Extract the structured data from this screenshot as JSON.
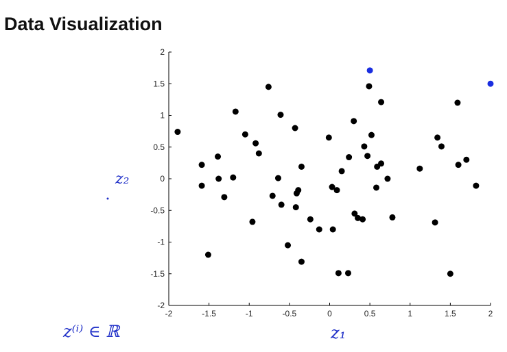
{
  "chart_data": {
    "type": "scatter",
    "title": "Data Visualization",
    "annotations": [
      "z₂",
      "z₁",
      "z⁽ⁱ⁾ ∈ ℝ"
    ],
    "xlim": [
      -2,
      2
    ],
    "ylim": [
      -2,
      2
    ],
    "xticks": [
      -2,
      -1.5,
      -1,
      -0.5,
      0,
      0.5,
      1,
      1.5,
      2
    ],
    "yticks": [
      -2,
      -1.5,
      -1,
      -0.5,
      0,
      0.5,
      1,
      1.5,
      2
    ],
    "series": [
      {
        "color": "#000000",
        "x": [
          -1.89,
          -1.59,
          -1.39,
          -1.59,
          -1.38,
          -1.31,
          -1.51,
          -1.17,
          -1.2,
          -1.05,
          -0.92,
          -0.88,
          -0.96,
          -0.76,
          -0.71,
          -0.61,
          -0.64,
          -0.6,
          -0.52,
          -0.43,
          -0.41,
          -0.42,
          -0.39,
          -0.35,
          -0.35,
          -0.24,
          -0.13,
          -0.01,
          0.03,
          0.04,
          0.09,
          0.15,
          0.11,
          0.23,
          0.24,
          0.3,
          0.31,
          0.35,
          0.41,
          0.43,
          0.47,
          0.49,
          0.52,
          0.59,
          0.64,
          0.58,
          0.64,
          0.72,
          0.78,
          1.12,
          1.34,
          1.31,
          1.39,
          1.5,
          1.59,
          1.6,
          1.7,
          1.82
        ],
        "values": [
          0.74,
          0.22,
          0.35,
          -0.11,
          0.0,
          -0.29,
          -1.2,
          1.06,
          0.02,
          0.7,
          0.56,
          0.4,
          -0.68,
          1.45,
          -0.27,
          1.01,
          0.01,
          -0.41,
          -1.05,
          0.8,
          -0.23,
          -0.45,
          -0.18,
          0.19,
          -1.31,
          -0.64,
          -0.8,
          0.65,
          -0.13,
          -0.8,
          -0.18,
          0.12,
          -1.49,
          -1.49,
          0.34,
          0.91,
          -0.55,
          -0.62,
          -0.64,
          0.51,
          0.36,
          1.46,
          0.69,
          0.19,
          0.24,
          -0.14,
          1.21,
          0.0,
          -0.61,
          0.16,
          0.65,
          -0.69,
          0.51,
          -1.5,
          1.2,
          0.22,
          0.3,
          -0.11
        ]
      },
      {
        "color": "#1a2ee0",
        "x": [
          0.5,
          2.0
        ],
        "values": [
          1.71,
          1.5
        ]
      }
    ]
  }
}
